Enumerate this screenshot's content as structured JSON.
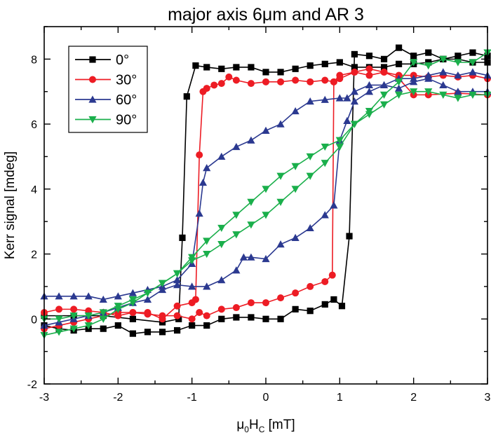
{
  "chart_data": {
    "type": "scatter",
    "title": "major axis 6μm and AR 3",
    "xlabel": "μ0HC [mT]",
    "xlabel_parts": {
      "mu": "μ",
      "sub0": "0",
      "H": "H",
      "subC": "C",
      "unit": " [mT]"
    },
    "ylabel": "Kerr signal [mdeg]",
    "xlim": [
      -3,
      3
    ],
    "ylim": [
      -2,
      9
    ],
    "xticks": [
      "-3",
      "-2",
      "-1",
      "0",
      "1",
      "2",
      "3"
    ],
    "yticks": [
      "-2",
      "0",
      "2",
      "4",
      "6",
      "8"
    ],
    "legend_position": "top-left",
    "series": [
      {
        "name": "0°",
        "color": "#000000",
        "marker": "square",
        "branches": [
          [
            [
              3,
              8.1
            ],
            [
              2.8,
              8.2
            ],
            [
              2.6,
              8.1
            ],
            [
              2.4,
              8.0
            ],
            [
              2.2,
              7.9
            ],
            [
              2.0,
              7.85
            ],
            [
              1.8,
              7.85
            ],
            [
              1.6,
              7.75
            ],
            [
              1.4,
              7.75
            ],
            [
              1.2,
              7.75
            ],
            [
              1.0,
              7.9
            ],
            [
              0.8,
              7.85
            ],
            [
              0.6,
              7.8
            ],
            [
              0.4,
              7.7
            ],
            [
              0.2,
              7.6
            ],
            [
              0,
              7.6
            ],
            [
              -0.2,
              7.75
            ],
            [
              -0.4,
              7.75
            ],
            [
              -0.6,
              7.7
            ],
            [
              -0.8,
              7.75
            ],
            [
              -0.95,
              7.8
            ],
            [
              -1.07,
              6.85
            ],
            [
              -1.13,
              2.5
            ],
            [
              -1.18,
              0.0
            ],
            [
              -1.4,
              -0.1
            ],
            [
              -1.8,
              0.0
            ],
            [
              -2.2,
              0.1
            ],
            [
              -2.6,
              0.1
            ],
            [
              -3,
              0.1
            ]
          ],
          [
            [
              -3,
              -0.2
            ],
            [
              -2.8,
              -0.3
            ],
            [
              -2.6,
              -0.35
            ],
            [
              -2.4,
              -0.3
            ],
            [
              -2.2,
              -0.3
            ],
            [
              -2.0,
              -0.2
            ],
            [
              -1.8,
              -0.45
            ],
            [
              -1.6,
              -0.4
            ],
            [
              -1.4,
              -0.4
            ],
            [
              -1.2,
              -0.35
            ],
            [
              -1.0,
              -0.2
            ],
            [
              -0.8,
              -0.2
            ],
            [
              -0.6,
              0.0
            ],
            [
              -0.4,
              0.05
            ],
            [
              -0.2,
              0.05
            ],
            [
              0,
              0.0
            ],
            [
              0.2,
              0.0
            ],
            [
              0.4,
              0.3
            ],
            [
              0.6,
              0.25
            ],
            [
              0.8,
              0.45
            ],
            [
              0.92,
              0.6
            ],
            [
              1.03,
              0.4
            ],
            [
              1.13,
              2.55
            ],
            [
              1.2,
              8.15
            ],
            [
              1.4,
              8.1
            ],
            [
              1.6,
              8.0
            ],
            [
              1.8,
              8.35
            ],
            [
              2.0,
              8.1
            ],
            [
              2.2,
              8.2
            ],
            [
              2.4,
              8.0
            ],
            [
              2.6,
              8.0
            ],
            [
              2.8,
              7.9
            ],
            [
              3,
              7.9
            ]
          ]
        ]
      },
      {
        "name": "30°",
        "color": "#ed1c24",
        "marker": "circle",
        "branches": [
          [
            [
              3,
              6.9
            ],
            [
              2.6,
              6.95
            ],
            [
              2.2,
              6.9
            ],
            [
              2.0,
              6.9
            ],
            [
              1.8,
              7.4
            ],
            [
              1.6,
              7.6
            ],
            [
              1.4,
              7.5
            ],
            [
              1.2,
              7.6
            ],
            [
              1.0,
              7.4
            ],
            [
              0.92,
              7.3
            ],
            [
              0.8,
              7.35
            ],
            [
              0.6,
              7.3
            ],
            [
              0.4,
              7.35
            ],
            [
              0.2,
              7.3
            ],
            [
              0,
              7.3
            ],
            [
              -0.2,
              7.25
            ],
            [
              -0.4,
              7.35
            ],
            [
              -0.5,
              7.45
            ],
            [
              -0.6,
              7.25
            ],
            [
              -0.7,
              7.2
            ],
            [
              -0.8,
              7.1
            ],
            [
              -0.85,
              7.0
            ],
            [
              -0.9,
              5.05
            ],
            [
              -0.95,
              0.6
            ],
            [
              -1.0,
              0.5
            ],
            [
              -1.2,
              0.4
            ],
            [
              -1.4,
              0.0
            ],
            [
              -1.6,
              0.2
            ],
            [
              -1.8,
              0.2
            ],
            [
              -2.0,
              0.1
            ],
            [
              -2.2,
              0.2
            ],
            [
              -2.4,
              0.25
            ],
            [
              -2.6,
              0.3
            ],
            [
              -2.8,
              0.3
            ],
            [
              -3,
              0.2
            ]
          ],
          [
            [
              -3,
              -0.3
            ],
            [
              -2.8,
              -0.2
            ],
            [
              -2.6,
              -0.1
            ],
            [
              -2.4,
              0.0
            ],
            [
              -2.2,
              0.1
            ],
            [
              -2.0,
              0.2
            ],
            [
              -1.8,
              0.2
            ],
            [
              -1.6,
              0.15
            ],
            [
              -1.4,
              0.1
            ],
            [
              -1.2,
              0.1
            ],
            [
              -1.0,
              0.0
            ],
            [
              -0.9,
              0.2
            ],
            [
              -0.8,
              0.1
            ],
            [
              -0.6,
              0.3
            ],
            [
              -0.4,
              0.35
            ],
            [
              -0.2,
              0.5
            ],
            [
              0,
              0.5
            ],
            [
              0.2,
              0.65
            ],
            [
              0.4,
              0.8
            ],
            [
              0.6,
              1.0
            ],
            [
              0.8,
              1.15
            ],
            [
              0.9,
              1.35
            ],
            [
              0.92,
              7.3
            ],
            [
              1.0,
              7.5
            ],
            [
              1.2,
              7.6
            ],
            [
              1.4,
              7.7
            ],
            [
              1.6,
              7.6
            ],
            [
              1.8,
              7.5
            ],
            [
              2.0,
              7.5
            ],
            [
              2.2,
              7.45
            ],
            [
              2.4,
              7.5
            ],
            [
              2.6,
              7.45
            ],
            [
              2.8,
              7.5
            ],
            [
              3,
              7.4
            ]
          ]
        ]
      },
      {
        "name": "60°",
        "color": "#2b3990",
        "marker": "triangle-up",
        "branches": [
          [
            [
              3,
              7.0
            ],
            [
              2.8,
              7.0
            ],
            [
              2.6,
              7.0
            ],
            [
              2.4,
              7.2
            ],
            [
              2.2,
              7.4
            ],
            [
              2.0,
              7.3
            ],
            [
              1.8,
              7.1
            ],
            [
              1.6,
              7.2
            ],
            [
              1.4,
              7.2
            ],
            [
              1.2,
              7.0
            ],
            [
              1.1,
              6.8
            ],
            [
              1.0,
              6.8
            ],
            [
              0.8,
              6.75
            ],
            [
              0.6,
              6.7
            ],
            [
              0.4,
              6.4
            ],
            [
              0.2,
              6.0
            ],
            [
              0,
              5.8
            ],
            [
              -0.2,
              5.5
            ],
            [
              -0.4,
              5.3
            ],
            [
              -0.6,
              5.0
            ],
            [
              -0.8,
              4.65
            ],
            [
              -0.85,
              4.2
            ],
            [
              -0.9,
              3.25
            ],
            [
              -1.0,
              1.7
            ],
            [
              -1.2,
              1.2
            ],
            [
              -1.4,
              1.0
            ],
            [
              -1.6,
              0.9
            ],
            [
              -1.8,
              0.8
            ],
            [
              -2.0,
              0.7
            ],
            [
              -2.2,
              0.6
            ],
            [
              -2.4,
              0.7
            ],
            [
              -2.6,
              0.7
            ],
            [
              -2.8,
              0.7
            ],
            [
              -3,
              0.7
            ]
          ],
          [
            [
              -3,
              -0.2
            ],
            [
              -2.8,
              -0.1
            ],
            [
              -2.6,
              0.0
            ],
            [
              -2.4,
              0.1
            ],
            [
              -2.2,
              0.2
            ],
            [
              -2.0,
              0.35
            ],
            [
              -1.8,
              0.5
            ],
            [
              -1.6,
              0.6
            ],
            [
              -1.4,
              0.9
            ],
            [
              -1.2,
              1.05
            ],
            [
              -1.0,
              1.0
            ],
            [
              -0.8,
              1.0
            ],
            [
              -0.6,
              1.2
            ],
            [
              -0.4,
              1.5
            ],
            [
              -0.3,
              1.9
            ],
            [
              -0.2,
              1.9
            ],
            [
              0,
              1.85
            ],
            [
              0.2,
              2.3
            ],
            [
              0.4,
              2.5
            ],
            [
              0.6,
              2.8
            ],
            [
              0.8,
              3.2
            ],
            [
              0.92,
              3.5
            ],
            [
              1.0,
              5.5
            ],
            [
              1.1,
              6.1
            ],
            [
              1.2,
              6.7
            ],
            [
              1.4,
              7.0
            ],
            [
              1.6,
              7.2
            ],
            [
              1.8,
              7.4
            ],
            [
              2.0,
              7.4
            ],
            [
              2.2,
              7.5
            ],
            [
              2.4,
              7.6
            ],
            [
              2.6,
              7.5
            ],
            [
              2.8,
              7.6
            ],
            [
              3,
              7.5
            ]
          ]
        ]
      },
      {
        "name": "90°",
        "color": "#1aaf4b",
        "marker": "triangle-down",
        "branches": [
          [
            [
              3,
              8.2
            ],
            [
              2.8,
              7.9
            ],
            [
              2.6,
              7.9
            ],
            [
              2.4,
              8.0
            ],
            [
              2.2,
              7.8
            ],
            [
              2.0,
              7.9
            ],
            [
              1.8,
              7.3
            ],
            [
              1.6,
              6.9
            ],
            [
              1.4,
              6.4
            ],
            [
              1.2,
              6.0
            ],
            [
              1.0,
              5.3
            ],
            [
              0.8,
              4.8
            ],
            [
              0.6,
              4.4
            ],
            [
              0.4,
              4.0
            ],
            [
              0.2,
              3.6
            ],
            [
              0,
              3.2
            ],
            [
              -0.2,
              2.9
            ],
            [
              -0.4,
              2.6
            ],
            [
              -0.6,
              2.3
            ],
            [
              -0.8,
              2.0
            ],
            [
              -1.0,
              1.8
            ],
            [
              -1.2,
              1.4
            ],
            [
              -1.4,
              1.1
            ],
            [
              -1.6,
              0.8
            ],
            [
              -1.8,
              0.6
            ],
            [
              -2.0,
              0.4
            ],
            [
              -2.2,
              0.2
            ],
            [
              -2.4,
              0.1
            ],
            [
              -2.6,
              0.1
            ],
            [
              -2.8,
              0.0
            ],
            [
              -3,
              0.0
            ]
          ],
          [
            [
              -3,
              -0.5
            ],
            [
              -2.8,
              -0.4
            ],
            [
              -2.6,
              -0.3
            ],
            [
              -2.4,
              -0.2
            ],
            [
              -2.2,
              0.0
            ],
            [
              -2.0,
              0.3
            ],
            [
              -1.8,
              0.5
            ],
            [
              -1.6,
              0.8
            ],
            [
              -1.4,
              1.1
            ],
            [
              -1.2,
              1.4
            ],
            [
              -1.0,
              1.9
            ],
            [
              -0.8,
              2.4
            ],
            [
              -0.6,
              2.8
            ],
            [
              -0.4,
              3.2
            ],
            [
              -0.2,
              3.6
            ],
            [
              0,
              4.0
            ],
            [
              0.2,
              4.4
            ],
            [
              0.4,
              4.7
            ],
            [
              0.6,
              5.0
            ],
            [
              0.8,
              5.3
            ],
            [
              1.0,
              5.5
            ],
            [
              1.2,
              6.0
            ],
            [
              1.4,
              6.3
            ],
            [
              1.6,
              6.6
            ],
            [
              1.8,
              6.9
            ],
            [
              2.0,
              7.0
            ],
            [
              2.2,
              7.0
            ],
            [
              2.4,
              6.9
            ],
            [
              2.6,
              6.8
            ],
            [
              2.8,
              6.9
            ],
            [
              3,
              6.9
            ]
          ]
        ]
      }
    ]
  }
}
